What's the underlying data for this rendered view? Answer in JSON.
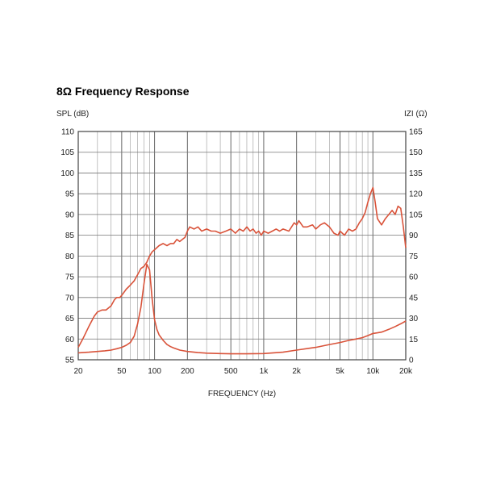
{
  "chart_data": {
    "type": "line",
    "title": "8Ω Frequency Response",
    "xlabel": "FREQUENCY (Hz)",
    "ylabel": "SPL (dB)",
    "y2label": "IZI (Ω)",
    "xscale": "log",
    "xlim": [
      20,
      20000
    ],
    "ylim": [
      55,
      110
    ],
    "y2lim": [
      0,
      165
    ],
    "grid": true,
    "x_ticks": [
      {
        "v": 20,
        "label": "20"
      },
      {
        "v": 50,
        "label": "50"
      },
      {
        "v": 100,
        "label": "100"
      },
      {
        "v": 200,
        "label": "200"
      },
      {
        "v": 500,
        "label": "500"
      },
      {
        "v": 1000,
        "label": "1k"
      },
      {
        "v": 2000,
        "label": "2k"
      },
      {
        "v": 5000,
        "label": "5k"
      },
      {
        "v": 10000,
        "label": "10k"
      },
      {
        "v": 20000,
        "label": "20k"
      }
    ],
    "y_ticks": [
      "55",
      "60",
      "65",
      "70",
      "75",
      "80",
      "85",
      "90",
      "95",
      "100",
      "105",
      "110"
    ],
    "y2_ticks": [
      "0",
      "15",
      "30",
      "45",
      "60",
      "75",
      "90",
      "105",
      "120",
      "135",
      "150",
      "165"
    ],
    "line_color": "#d9533a",
    "series": [
      {
        "axis": "left",
        "x": [
          20,
          22,
          25,
          28,
          30,
          33,
          36,
          40,
          43,
          45,
          48,
          50,
          55,
          60,
          65,
          70,
          75,
          80,
          85,
          90,
          95,
          100,
          110,
          120,
          130,
          140,
          150,
          160,
          170,
          180,
          190,
          200,
          210,
          230,
          250,
          270,
          300,
          330,
          360,
          400,
          450,
          500,
          550,
          600,
          650,
          700,
          750,
          800,
          850,
          900,
          950,
          1000,
          1100,
          1200,
          1300,
          1400,
          1500,
          1700,
          1900,
          2000,
          2100,
          2300,
          2500,
          2800,
          3000,
          3300,
          3600,
          4000,
          4400,
          4800,
          5000,
          5500,
          6000,
          6500,
          7000,
          7500,
          8000,
          8500,
          9000,
          9500,
          10000,
          10500,
          11000,
          12000,
          13000,
          14000,
          15000,
          16000,
          17000,
          18000,
          19000,
          20000
        ],
        "y": [
          58,
          60,
          63,
          65.5,
          66.5,
          67,
          67,
          68,
          69.5,
          70,
          70,
          70.5,
          72,
          73,
          74,
          75.5,
          77,
          77.5,
          78.5,
          80,
          81,
          81.5,
          82.5,
          83,
          82.5,
          83,
          83,
          84,
          83.5,
          84,
          84.5,
          86,
          87,
          86.5,
          87,
          86,
          86.5,
          86,
          86,
          85.5,
          86,
          86.5,
          85.5,
          86.5,
          86,
          87,
          86,
          86.5,
          85.5,
          86,
          85,
          86,
          85.5,
          86,
          86.5,
          86,
          86.5,
          86,
          88,
          87.5,
          88.5,
          87,
          87,
          87.5,
          86.5,
          87.5,
          88,
          87,
          85.5,
          85,
          86,
          85,
          86.5,
          86,
          86.5,
          88,
          89,
          90.5,
          93,
          95,
          96.5,
          93,
          89,
          87.5,
          89,
          90,
          91,
          90,
          92,
          91.5,
          87,
          82
        ]
      },
      {
        "axis": "right",
        "x": [
          20,
          25,
          30,
          35,
          40,
          45,
          50,
          55,
          60,
          65,
          70,
          75,
          80,
          85,
          90,
          95,
          100,
          105,
          110,
          120,
          130,
          140,
          150,
          170,
          200,
          250,
          300,
          400,
          500,
          700,
          1000,
          1500,
          2000,
          3000,
          4000,
          5000,
          6000,
          7000,
          8000,
          9000,
          10000,
          11000,
          12000,
          14000,
          16000,
          18000,
          20000
        ],
        "y": [
          5,
          5.5,
          6,
          6.5,
          7,
          8,
          9,
          10.5,
          12.5,
          17,
          26,
          38,
          55,
          69,
          65,
          44,
          29,
          22,
          18,
          14,
          11,
          9.5,
          8.5,
          7,
          6,
          5.2,
          4.8,
          4.5,
          4.3,
          4.3,
          4.5,
          5.5,
          7,
          9,
          11,
          12.5,
          14,
          15,
          16,
          17.5,
          19,
          19.5,
          20,
          22,
          24,
          26,
          28
        ]
      }
    ]
  }
}
